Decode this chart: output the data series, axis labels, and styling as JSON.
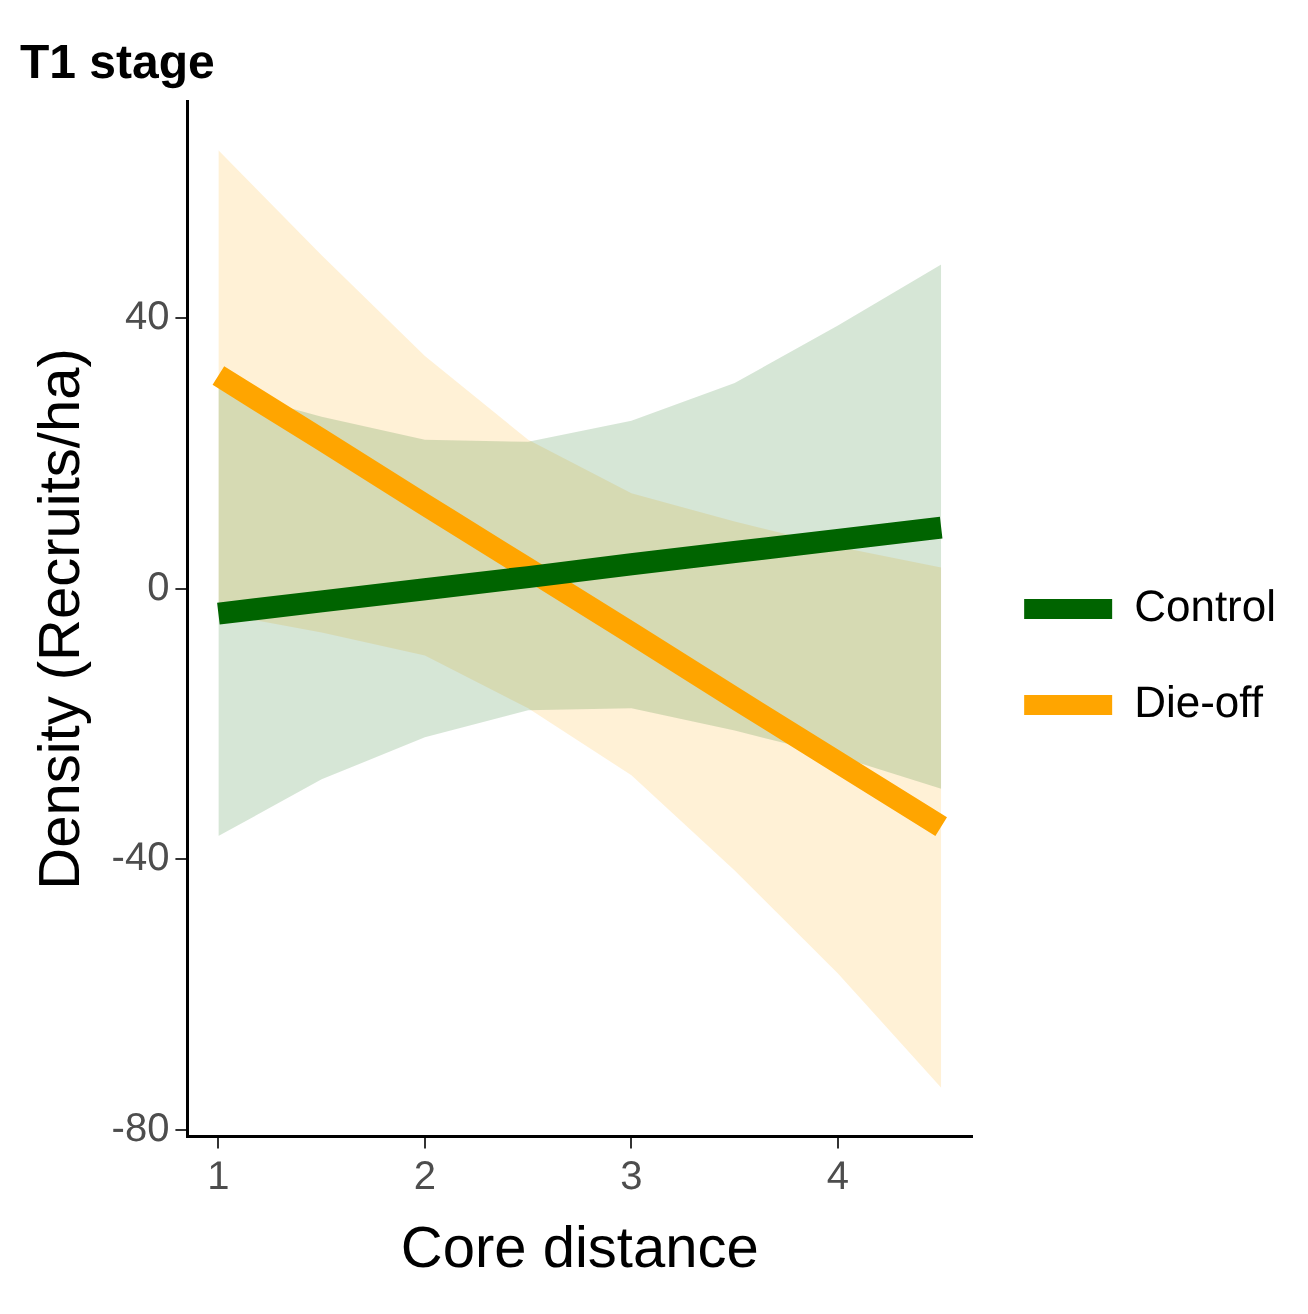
{
  "chart_data": {
    "type": "line",
    "title": "T1 stage",
    "xlabel": "Core distance",
    "ylabel": "Density (Recruits/ha)",
    "x": [
      1,
      1.5,
      2,
      2.5,
      3,
      3.5,
      4,
      4.5
    ],
    "series": [
      {
        "name": "Control",
        "color": "#006400",
        "values": [
          -3.7,
          -1.9,
          -0.1,
          1.7,
          3.6,
          5.4,
          7.2,
          9.0
        ],
        "lower": [
          -36.6,
          -28.2,
          -22,
          -18,
          -17.7,
          -21,
          -24.8,
          -29.6
        ],
        "upper": [
          29.6,
          25.4,
          22,
          21.7,
          24.8,
          30.4,
          38.9,
          47.9
        ]
      },
      {
        "name": "Die-off",
        "color": "#ffa500",
        "values": [
          31.5,
          22.0,
          12.4,
          2.9,
          -6.6,
          -16.2,
          -25.7,
          -35.2
        ],
        "lower": [
          -3.7,
          -6.5,
          -9.9,
          -17.7,
          -27.6,
          -41.7,
          -56.9,
          -73.8
        ],
        "upper": [
          64.8,
          49.3,
          34.4,
          22,
          14.1,
          9.9,
          6.2,
          3.1
        ]
      }
    ],
    "xlim": [
      0.85,
      4.65
    ],
    "xticks": [
      1,
      2,
      3,
      4
    ],
    "ylim": [
      -81,
      72
    ],
    "yticks": [
      -80,
      -40,
      0,
      40
    ],
    "grid": false,
    "legend": "right",
    "marker": "none",
    "line_style": "solid"
  }
}
